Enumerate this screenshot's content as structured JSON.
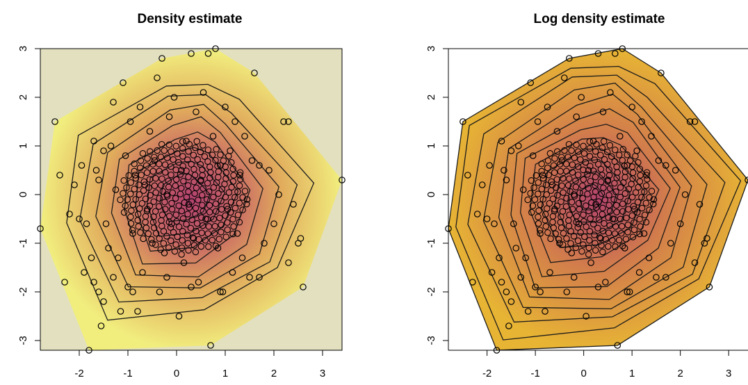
{
  "chart_data": [
    {
      "type": "scatter",
      "title": "Density estimate",
      "xlim": [
        -2.8,
        3.4
      ],
      "ylim": [
        -3.2,
        3.0
      ],
      "xticks": [
        "-2",
        "-1",
        "0",
        "1",
        "2",
        "3"
      ],
      "yticks": [
        "-3",
        "-2",
        "-1",
        "0",
        "1",
        "2",
        "3"
      ],
      "fill": "density heat map with contour lines",
      "colors": {
        "background": "#e2e0bf",
        "low": "#f1ee7e",
        "mid": "#d79a5a",
        "high": "#b4426f"
      }
    },
    {
      "type": "scatter",
      "title": "Log density estimate",
      "xlim": [
        -2.8,
        3.4
      ],
      "ylim": [
        -3.2,
        3.0
      ],
      "xticks": [
        "-2",
        "-1",
        "0",
        "1",
        "2",
        "3"
      ],
      "yticks": [
        "-3",
        "-2",
        "-1",
        "0",
        "1",
        "2",
        "3"
      ],
      "fill": "log density filled contours",
      "colors": {
        "background": "#ffffff",
        "low": "#e7b434",
        "mid": "#d27c4c",
        "high": "#b3436c"
      }
    }
  ],
  "points": [
    [
      -2.8,
      -0.7
    ],
    [
      -2.5,
      1.5
    ],
    [
      -2.4,
      0.4
    ],
    [
      -2.3,
      -1.8
    ],
    [
      -2.2,
      -0.4
    ],
    [
      -2.1,
      0.2
    ],
    [
      -2.0,
      -0.5
    ],
    [
      -1.95,
      0.6
    ],
    [
      -1.9,
      -1.6
    ],
    [
      -1.85,
      -0.6
    ],
    [
      -1.8,
      -3.2
    ],
    [
      -1.75,
      -1.3
    ],
    [
      -1.7,
      -1.8
    ],
    [
      -1.7,
      1.1
    ],
    [
      -1.65,
      0.5
    ],
    [
      -1.6,
      -2.0
    ],
    [
      -1.55,
      -2.7
    ],
    [
      -1.5,
      -2.2
    ],
    [
      -1.5,
      0.9
    ],
    [
      -1.45,
      -0.6
    ],
    [
      -1.4,
      -1.1
    ],
    [
      -1.35,
      1.0
    ],
    [
      -1.3,
      -1.7
    ],
    [
      -1.3,
      1.9
    ],
    [
      -1.25,
      0.1
    ],
    [
      -1.2,
      -1.3
    ],
    [
      -1.15,
      -2.4
    ],
    [
      -1.1,
      2.3
    ],
    [
      -1.05,
      0.8
    ],
    [
      -1.0,
      -1.9
    ],
    [
      -0.95,
      1.5
    ],
    [
      -0.9,
      -0.8
    ],
    [
      -0.85,
      0.4
    ],
    [
      -0.8,
      -2.4
    ],
    [
      -0.75,
      1.8
    ],
    [
      -0.7,
      -1.6
    ],
    [
      -0.65,
      0.2
    ],
    [
      -0.6,
      -0.3
    ],
    [
      -0.55,
      1.3
    ],
    [
      -0.5,
      -1.0
    ],
    [
      -0.45,
      0.7
    ],
    [
      -0.4,
      2.4
    ],
    [
      -0.35,
      -2.0
    ],
    [
      -0.3,
      2.8
    ],
    [
      -0.25,
      -1.2
    ],
    [
      -0.2,
      0.0
    ],
    [
      -0.15,
      1.6
    ],
    [
      -0.1,
      -0.6
    ],
    [
      -0.05,
      2.0
    ],
    [
      0.05,
      -2.5
    ],
    [
      0.1,
      0.5
    ],
    [
      0.15,
      -1.4
    ],
    [
      0.2,
      1.1
    ],
    [
      0.25,
      -0.2
    ],
    [
      0.3,
      2.9
    ],
    [
      0.35,
      -0.9
    ],
    [
      0.4,
      1.7
    ],
    [
      0.45,
      -1.8
    ],
    [
      0.5,
      0.3
    ],
    [
      0.55,
      2.1
    ],
    [
      0.6,
      -0.5
    ],
    [
      0.65,
      2.9
    ],
    [
      0.7,
      -3.1
    ],
    [
      0.75,
      1.2
    ],
    [
      0.8,
      3.0
    ],
    [
      0.85,
      -1.1
    ],
    [
      0.9,
      0.6
    ],
    [
      0.95,
      -2.0
    ],
    [
      1.0,
      1.8
    ],
    [
      1.05,
      -0.3
    ],
    [
      1.1,
      0.9
    ],
    [
      1.15,
      -1.6
    ],
    [
      1.2,
      1.5
    ],
    [
      1.25,
      -0.8
    ],
    [
      1.3,
      0.4
    ],
    [
      1.35,
      -1.3
    ],
    [
      1.4,
      1.2
    ],
    [
      1.45,
      -0.1
    ],
    [
      1.5,
      -1.7
    ],
    [
      1.55,
      0.7
    ],
    [
      1.6,
      2.5
    ],
    [
      1.7,
      -1.7
    ],
    [
      1.8,
      -1.0
    ],
    [
      1.9,
      0.5
    ],
    [
      2.0,
      -0.6
    ],
    [
      2.1,
      0.0
    ],
    [
      2.2,
      1.5
    ],
    [
      2.3,
      -1.4
    ],
    [
      2.4,
      -0.2
    ],
    [
      2.5,
      -1.0
    ],
    [
      2.55,
      -0.9
    ],
    [
      2.6,
      -1.9
    ],
    [
      3.4,
      0.3
    ],
    [
      2.3,
      1.5
    ],
    [
      -0.9,
      -2.0
    ],
    [
      0.9,
      -2.0
    ],
    [
      -1.6,
      0.3
    ],
    [
      1.7,
      0.6
    ],
    [
      -0.2,
      -1.7
    ],
    [
      0.3,
      -1.9
    ]
  ]
}
